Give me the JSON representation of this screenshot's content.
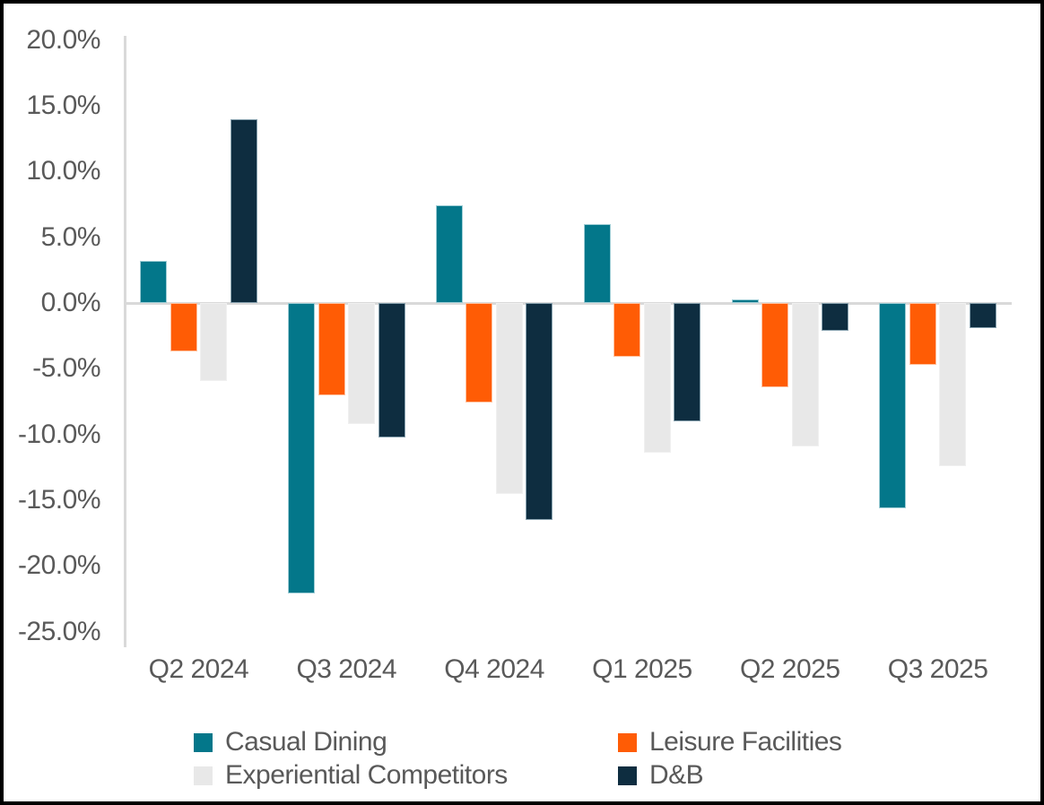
{
  "frame": {
    "background_color": "#ffffff",
    "border_color": "#000000"
  },
  "colors": {
    "axis_line": "#d9d9d9",
    "zero_gridline": "#d9d9d9",
    "label_text": "#595959"
  },
  "chart_data": {
    "type": "bar",
    "title": "",
    "categories": [
      "Q2 2024",
      "Q3 2024",
      "Q4 2024",
      "Q1 2025",
      "Q2 2025",
      "Q3 2025"
    ],
    "series": [
      {
        "name": "Casual Dining",
        "color": "#03778a",
        "border_color": "#9ecdd5",
        "values": [
          3.2,
          -22.1,
          7.4,
          6.0,
          0.3,
          -15.6
        ]
      },
      {
        "name": "Leisure Facilities",
        "color": "#ff5c05",
        "border_color": "#ffc19e",
        "values": [
          -3.7,
          -7.0,
          -7.6,
          -4.1,
          -6.4,
          -4.7
        ]
      },
      {
        "name": "Experiential Competitors",
        "color": "#e8e8e8",
        "border_color": "#f0f0f0",
        "values": [
          -5.9,
          -9.2,
          -14.5,
          -11.4,
          -10.9,
          -12.4
        ]
      },
      {
        "name": "D&B",
        "color": "#0e2d40",
        "border_color": "#87a1ae",
        "values": [
          14.0,
          -10.2,
          -16.5,
          -9.0,
          -2.1,
          -1.9
        ]
      }
    ],
    "y_axis": {
      "min": -25,
      "max": 20,
      "step": 5,
      "tick_labels": [
        "20.0%",
        "15.0%",
        "10.0%",
        "5.0%",
        "0.0%",
        "-5.0%",
        "-10.0%",
        "-15.0%",
        "-20.0%",
        "-25.0%"
      ],
      "unit": "percent"
    },
    "grid": "zero-line-only",
    "legend_position": "bottom",
    "legend": [
      "Casual Dining",
      "Leisure Facilities",
      "Experiential Competitors",
      "D&B"
    ]
  }
}
